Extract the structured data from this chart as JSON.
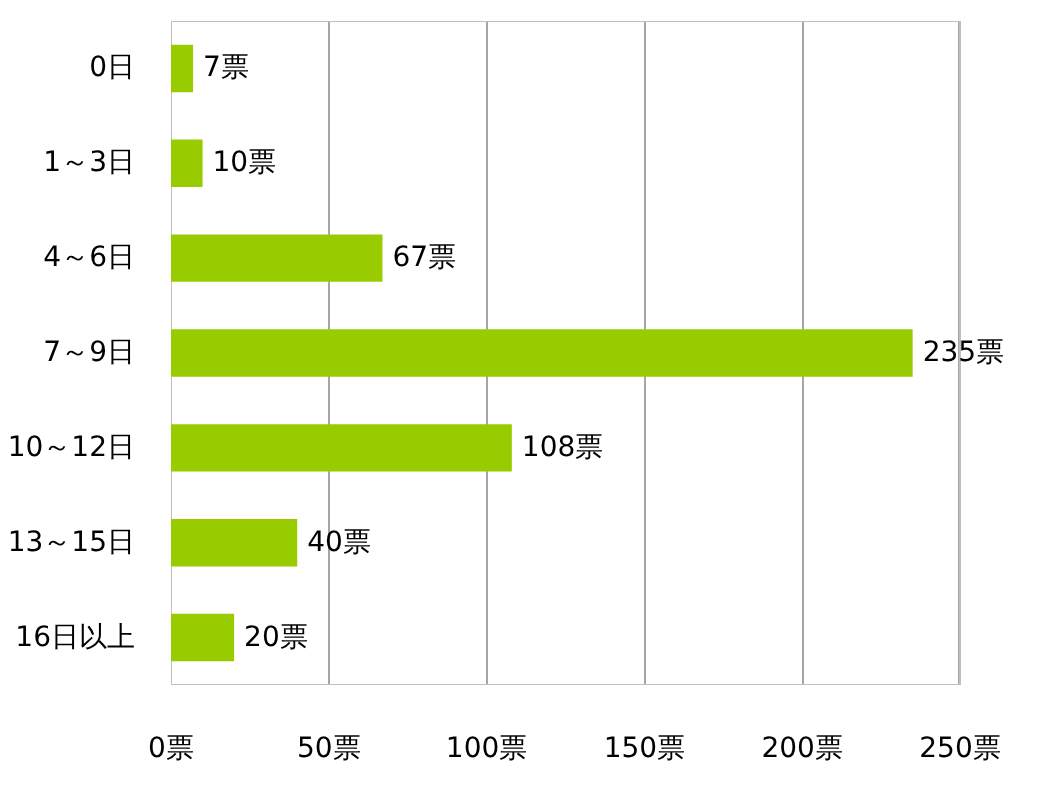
{
  "chart_data": {
    "type": "bar",
    "orientation": "horizontal",
    "categories": [
      "0日",
      "1～3日",
      "4～6日",
      "7～9日",
      "10～12日",
      "13～15日",
      "16日以上"
    ],
    "values": [
      7,
      10,
      67,
      235,
      108,
      40,
      20
    ],
    "value_labels": [
      "7票",
      "10票",
      "67票",
      "235票",
      "108票",
      "40票",
      "20票"
    ],
    "color": "#99cc00",
    "xlim": [
      0,
      250
    ],
    "xticks": [
      {
        "value": 0,
        "label": "0票"
      },
      {
        "value": 50,
        "label": "50票"
      },
      {
        "value": 100,
        "label": "100票"
      },
      {
        "value": 150,
        "label": "150票"
      },
      {
        "value": 200,
        "label": "200票"
      },
      {
        "value": 250,
        "label": "250票"
      }
    ],
    "grid": "x"
  }
}
